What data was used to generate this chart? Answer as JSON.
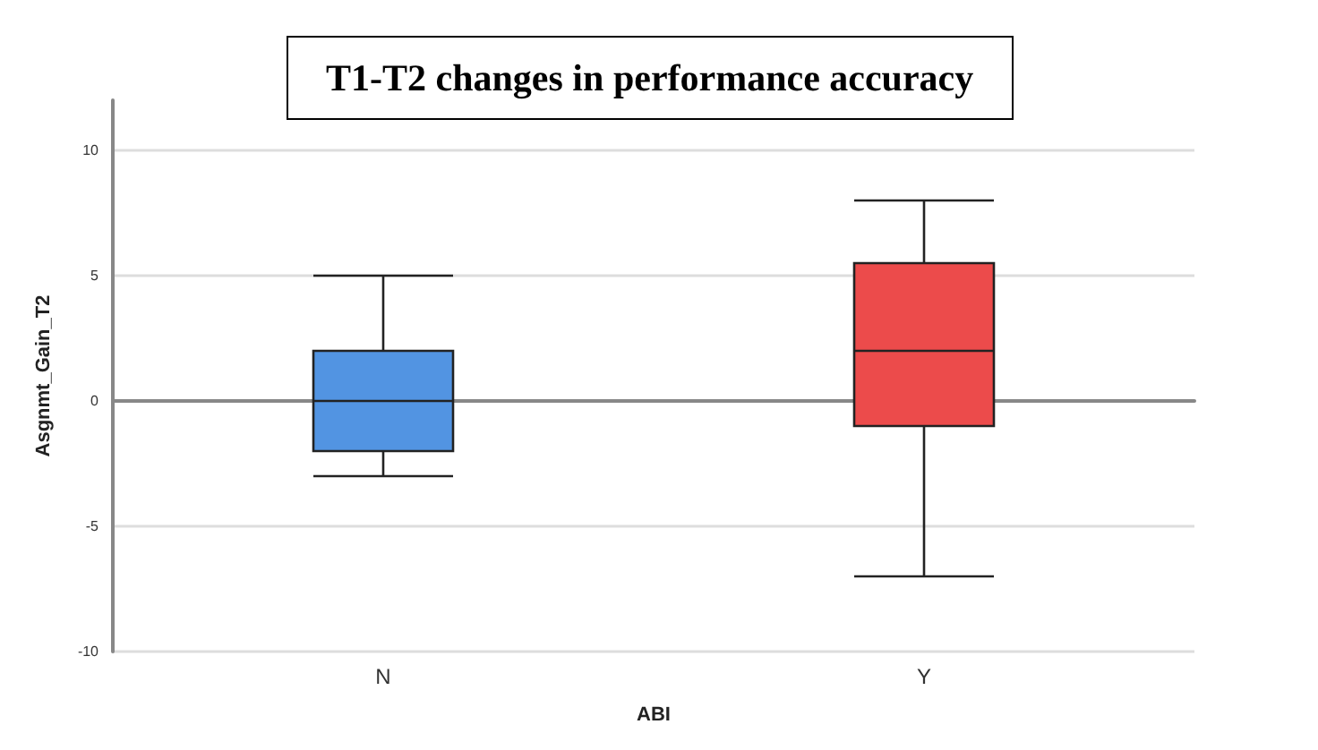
{
  "chart_data": {
    "type": "box",
    "title": "T1-T2 changes in performance accuracy",
    "xlabel": "ABI",
    "ylabel": "Asgnmt_Gain_T2",
    "categories": [
      "N",
      "Y"
    ],
    "boxes": [
      {
        "low": -3,
        "q1": -2,
        "median": 0,
        "q3": 2,
        "high": 5
      },
      {
        "low": -7,
        "q1": -1,
        "median": 2,
        "q3": 5.5,
        "high": 8
      }
    ],
    "colors": [
      "#5294e2",
      "#ec4b4b"
    ],
    "ylim": [
      -10,
      12
    ],
    "yticks": [
      -10,
      -5,
      0,
      5,
      10
    ],
    "grid": "y"
  }
}
